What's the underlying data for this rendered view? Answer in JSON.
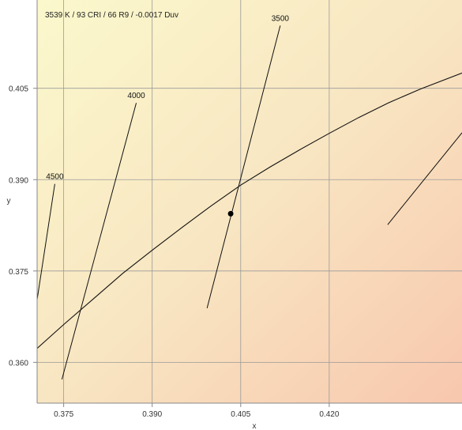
{
  "chart_data": {
    "type": "scatter",
    "annotation": "3539 K / 93 CRI / 66 R9 / -0.0017 Duv",
    "xlabel": "x",
    "ylabel": "y",
    "xlim": [
      0.3705,
      0.4425
    ],
    "ylim": [
      0.3533,
      0.4195
    ],
    "x_ticks": [
      0.375,
      0.39,
      0.405,
      0.42
    ],
    "x_tick_labels": [
      "0.375",
      "0.390",
      "0.405",
      "0.420"
    ],
    "y_ticks": [
      0.36,
      0.375,
      0.39,
      0.405
    ],
    "y_tick_labels": [
      "0.360",
      "0.375",
      "0.390",
      "0.405"
    ],
    "grid": true,
    "series": [
      {
        "values": [
          {
            "x": 0.3705,
            "y": 0.3623
          },
          {
            "x": 0.375,
            "y": 0.3662
          },
          {
            "x": 0.38,
            "y": 0.3704
          },
          {
            "x": 0.385,
            "y": 0.3746
          },
          {
            "x": 0.39,
            "y": 0.3784
          },
          {
            "x": 0.395,
            "y": 0.3821
          },
          {
            "x": 0.4,
            "y": 0.3857
          },
          {
            "x": 0.405,
            "y": 0.3891
          },
          {
            "x": 0.41,
            "y": 0.3921
          },
          {
            "x": 0.415,
            "y": 0.3949
          },
          {
            "x": 0.42,
            "y": 0.3976
          },
          {
            "x": 0.425,
            "y": 0.4002
          },
          {
            "x": 0.43,
            "y": 0.4026
          },
          {
            "x": 0.4355,
            "y": 0.4049
          },
          {
            "x": 0.4425,
            "y": 0.4075
          }
        ]
      }
    ],
    "isotherms": [
      {
        "label": "4500",
        "start": {
          "x": 0.3705,
          "y": 0.3703
        },
        "end": {
          "x": 0.3735,
          "y": 0.3893
        }
      },
      {
        "label": "4000",
        "start": {
          "x": 0.3747,
          "y": 0.3572
        },
        "end": {
          "x": 0.3873,
          "y": 0.4026
        }
      },
      {
        "label": "3500",
        "start": {
          "x": 0.3993,
          "y": 0.3689
        },
        "end": {
          "x": 0.4117,
          "y": 0.4153
        }
      },
      {
        "label": "",
        "start": {
          "x": 0.4299,
          "y": 0.3826
        },
        "end": {
          "x": 0.4425,
          "y": 0.3977
        }
      }
    ],
    "points": [
      {
        "x": 0.4033,
        "y": 0.3844
      }
    ]
  }
}
